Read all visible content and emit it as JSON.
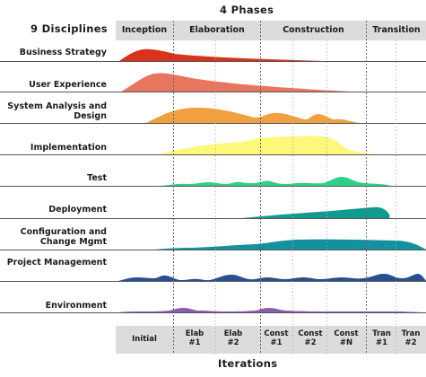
{
  "title_top": "4 Phases",
  "title_left": "9 Disciplines",
  "title_bottom": "Iterations",
  "phases": [
    "Inception",
    "Elaboration",
    "Construction",
    "Transition"
  ],
  "iterations": [
    "Initial",
    "Elab #1",
    "Elab #2",
    "Const #1",
    "Const #2",
    "Const #N",
    "Tran #1",
    "Tran #2"
  ],
  "disciplines": [
    {
      "label": "Business Strategy",
      "color": "#d9321c"
    },
    {
      "label": "User Experience",
      "color": "#e8765e"
    },
    {
      "label": "System Analysis and Design",
      "color": "#f0a040"
    },
    {
      "label": "Implementation",
      "color": "#fdf77a"
    },
    {
      "label": "Test",
      "color": "#2fd088"
    },
    {
      "label": "Deployment",
      "color": "#139a90"
    },
    {
      "label": "Configuration and Change Mgmt",
      "color": "#13919e"
    },
    {
      "label": "Project Management",
      "color": "#2a4f90"
    },
    {
      "label": "Environment",
      "color": "#8a5cb0"
    }
  ],
  "colors": {
    "phase_band": "#dcdcdc",
    "baseline": "#555555",
    "divider": "#777777"
  }
}
